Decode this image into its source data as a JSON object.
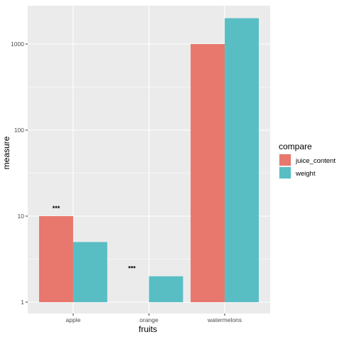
{
  "chart_data": {
    "type": "bar",
    "title": "",
    "xlabel": "fruits",
    "ylabel": "measure",
    "y_scale": "log10",
    "ylim": [
      1,
      2500
    ],
    "y_ticks": [
      1,
      10,
      100,
      1000
    ],
    "y_tick_labels": [
      "1",
      "10",
      "100",
      "1000"
    ],
    "categories": [
      "apple",
      "orange",
      "watermelons"
    ],
    "legend": {
      "title": "compare",
      "placement": "right"
    },
    "series": [
      {
        "name": "juice_content",
        "color": "#E8776E",
        "values": [
          10,
          1,
          1000
        ]
      },
      {
        "name": "weight",
        "color": "#59BEC4",
        "values": [
          5,
          2,
          2000
        ]
      }
    ],
    "annotations": [
      {
        "text": "***",
        "category": "apple",
        "series": "juice_content",
        "y": 10
      },
      {
        "text": "***",
        "category": "orange",
        "series": "juice_content",
        "y": 2
      }
    ],
    "grid": true,
    "panel_background": "#EBEBEB"
  }
}
